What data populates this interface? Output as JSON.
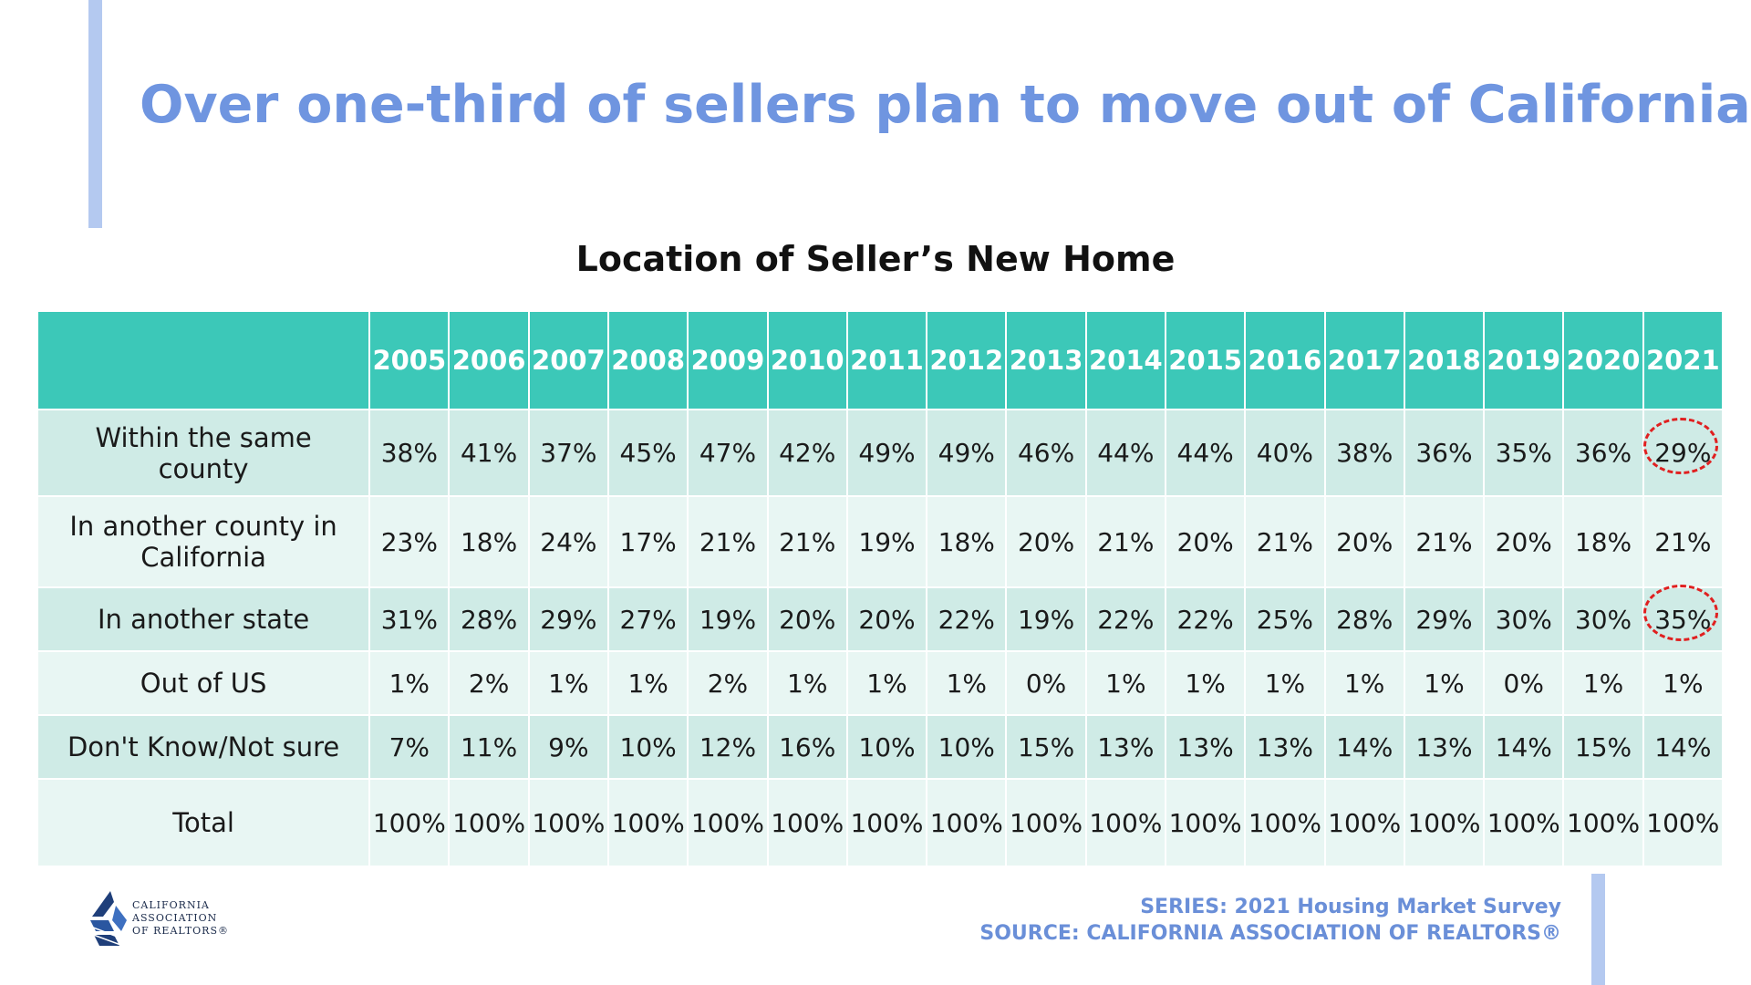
{
  "colors": {
    "accent_blue": "#6f95e0",
    "bar_blue": "#b4c9f0",
    "header_teal": "#3cc8b8",
    "row_dark": "#cfebe6",
    "row_light": "#e8f6f3",
    "footer_text": "#6a8fd8",
    "circle_red": "#e02020"
  },
  "slide": {
    "title": "Over one-third of sellers plan to move out of California"
  },
  "logo": {
    "icon": "realtors-association-logo",
    "lines": [
      "CALIFORNIA",
      "ASSOCIATION",
      "OF REALTORS®"
    ]
  },
  "footer": {
    "series": "SERIES: 2021 Housing Market Survey",
    "source": "SOURCE: CALIFORNIA ASSOCIATION OF REALTORS®"
  },
  "chart_data": {
    "type": "table",
    "title": "Location of Seller’s New Home",
    "columns": [
      "2005",
      "2006",
      "2007",
      "2008",
      "2009",
      "2010",
      "2011",
      "2012",
      "2013",
      "2014",
      "2015",
      "2016",
      "2017",
      "2018",
      "2019",
      "2020",
      "2021"
    ],
    "rows": [
      {
        "label": "Within the same county",
        "values": [
          "38%",
          "41%",
          "37%",
          "45%",
          "47%",
          "42%",
          "49%",
          "49%",
          "46%",
          "44%",
          "44%",
          "40%",
          "38%",
          "36%",
          "35%",
          "36%",
          "29%"
        ],
        "highlight_last": true
      },
      {
        "label": "In another county in California",
        "values": [
          "23%",
          "18%",
          "24%",
          "17%",
          "21%",
          "21%",
          "19%",
          "18%",
          "20%",
          "21%",
          "20%",
          "21%",
          "20%",
          "21%",
          "20%",
          "18%",
          "21%"
        ],
        "highlight_last": false
      },
      {
        "label": "In another state",
        "values": [
          "31%",
          "28%",
          "29%",
          "27%",
          "19%",
          "20%",
          "20%",
          "22%",
          "19%",
          "22%",
          "22%",
          "25%",
          "28%",
          "29%",
          "30%",
          "30%",
          "35%"
        ],
        "highlight_last": true
      },
      {
        "label": "Out of US",
        "values": [
          "1%",
          "2%",
          "1%",
          "1%",
          "2%",
          "1%",
          "1%",
          "1%",
          "0%",
          "1%",
          "1%",
          "1%",
          "1%",
          "1%",
          "0%",
          "1%",
          "1%"
        ],
        "highlight_last": false
      },
      {
        "label": "Don't Know/Not sure",
        "values": [
          "7%",
          "11%",
          "9%",
          "10%",
          "12%",
          "16%",
          "10%",
          "10%",
          "15%",
          "13%",
          "13%",
          "13%",
          "14%",
          "13%",
          "14%",
          "15%",
          "14%"
        ],
        "highlight_last": false
      },
      {
        "label": "Total",
        "values": [
          "100%",
          "100%",
          "100%",
          "100%",
          "100%",
          "100%",
          "100%",
          "100%",
          "100%",
          "100%",
          "100%",
          "100%",
          "100%",
          "100%",
          "100%",
          "100%",
          "100%"
        ],
        "highlight_last": false
      }
    ]
  }
}
